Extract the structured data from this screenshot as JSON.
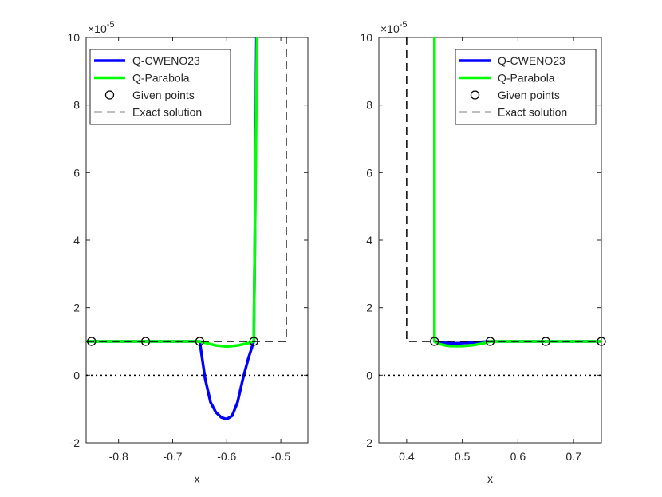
{
  "chart_data": [
    {
      "type": "line",
      "xlabel": "x",
      "ylabel": "",
      "exponent_label": "×10",
      "exponent_power": "-5",
      "xlim": [
        -0.86,
        -0.45
      ],
      "ylim": [
        -2,
        10
      ],
      "xticks": [
        -0.8,
        -0.7,
        -0.6,
        -0.5
      ],
      "xtick_labels": [
        "-0.8",
        "-0.7",
        "-0.6",
        "-0.5"
      ],
      "yticks": [
        -2,
        0,
        2,
        4,
        6,
        8,
        10
      ],
      "ytick_labels": [
        "-2",
        "0",
        "2",
        "4",
        "6",
        "8",
        "10"
      ],
      "legend_position": "top-left",
      "series": [
        {
          "name": "Q-CWENO23",
          "style": "solid",
          "color": "#0000ff",
          "x": [
            -0.86,
            -0.65,
            -0.64,
            -0.63,
            -0.62,
            -0.61,
            -0.6,
            -0.59,
            -0.58,
            -0.57,
            -0.56,
            -0.55,
            -0.548,
            -0.545
          ],
          "y": [
            1,
            1,
            -0.1,
            -0.8,
            -1.1,
            -1.25,
            -1.3,
            -1.2,
            -0.8,
            -0.1,
            0.5,
            1,
            4,
            10
          ]
        },
        {
          "name": "Q-Parabola",
          "style": "solid",
          "color": "#00ff00",
          "x": [
            -0.86,
            -0.65,
            -0.62,
            -0.6,
            -0.58,
            -0.56,
            -0.55,
            -0.548,
            -0.544
          ],
          "y": [
            1,
            1,
            0.88,
            0.85,
            0.88,
            0.95,
            1,
            4,
            10
          ]
        },
        {
          "name": "Given points",
          "style": "marker",
          "color": "#000000",
          "x": [
            -0.85,
            -0.75,
            -0.65,
            -0.55
          ],
          "y": [
            1,
            1,
            1,
            1
          ]
        },
        {
          "name": "Exact solution",
          "style": "dashed",
          "color": "#000000",
          "x": [
            -0.86,
            -0.5,
            -0.5,
            -0.49,
            -0.49
          ],
          "y": [
            1,
            1,
            1,
            1,
            10
          ]
        },
        {
          "name": "",
          "style": "dotted",
          "color": "#000000",
          "x": [
            -0.86,
            -0.45
          ],
          "y": [
            0,
            0
          ]
        }
      ]
    },
    {
      "type": "line",
      "xlabel": "x",
      "ylabel": "",
      "exponent_label": "×10",
      "exponent_power": "-5",
      "xlim": [
        0.35,
        0.75
      ],
      "ylim": [
        -2,
        10
      ],
      "xticks": [
        0.4,
        0.5,
        0.6,
        0.7
      ],
      "xtick_labels": [
        "0.4",
        "0.5",
        "0.6",
        "0.7"
      ],
      "yticks": [
        -2,
        0,
        2,
        4,
        6,
        8,
        10
      ],
      "ytick_labels": [
        "-2",
        "0",
        "2",
        "4",
        "6",
        "8",
        "10"
      ],
      "legend_position": "top-right",
      "series": [
        {
          "name": "Q-CWENO23",
          "style": "solid",
          "color": "#0000ff",
          "x": [
            0.45,
            0.45,
            0.46,
            0.48,
            0.5,
            0.52,
            0.55,
            0.75
          ],
          "y": [
            10,
            1,
            0.97,
            0.94,
            0.95,
            0.97,
            1,
            1
          ]
        },
        {
          "name": "Q-Parabola",
          "style": "solid",
          "color": "#00ff00",
          "x": [
            0.45,
            0.45,
            0.46,
            0.47,
            0.48,
            0.5,
            0.52,
            0.54,
            0.55,
            0.75
          ],
          "y": [
            10,
            1,
            0.92,
            0.88,
            0.86,
            0.86,
            0.89,
            0.95,
            1,
            1
          ]
        },
        {
          "name": "Given points",
          "style": "marker",
          "color": "#000000",
          "x": [
            0.45,
            0.55,
            0.65,
            0.75
          ],
          "y": [
            1,
            1,
            1,
            1
          ]
        },
        {
          "name": "Exact solution",
          "style": "dashed",
          "color": "#000000",
          "x": [
            0.4,
            0.4,
            0.75
          ],
          "y": [
            10,
            1,
            1
          ]
        },
        {
          "name": "",
          "style": "dotted",
          "color": "#000000",
          "x": [
            0.35,
            0.75
          ],
          "y": [
            0,
            0
          ]
        }
      ]
    }
  ]
}
